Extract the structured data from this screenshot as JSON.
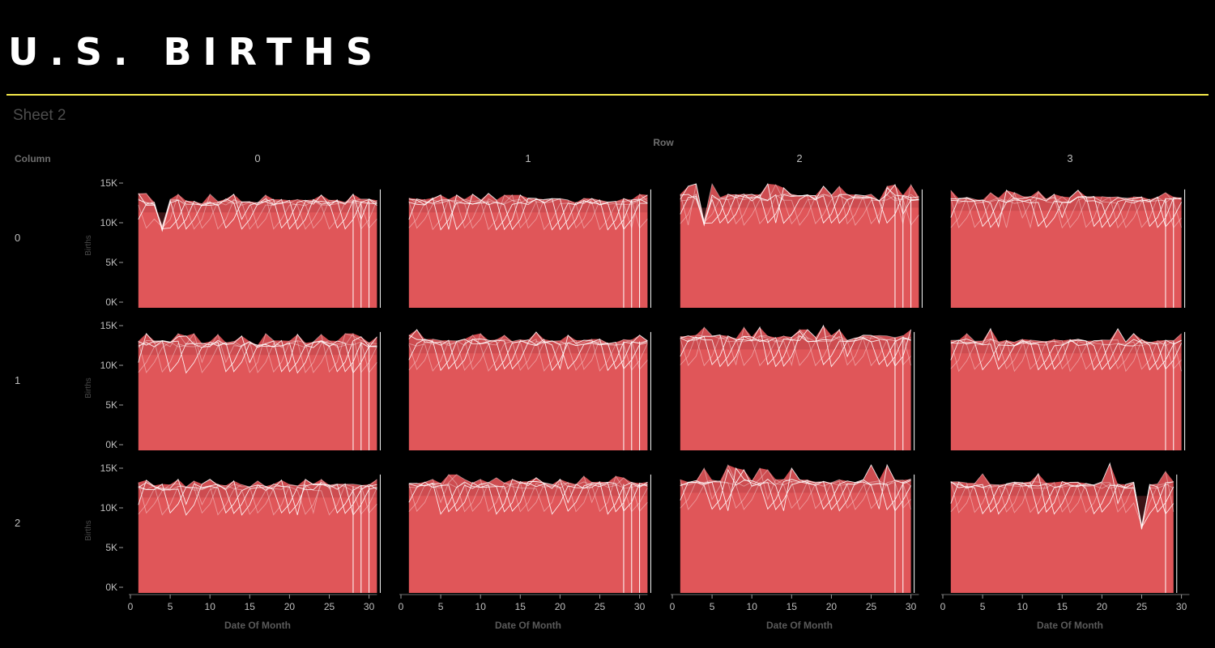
{
  "page": {
    "title": "U.S. BIRTHS",
    "sheet_title": "Sheet 2",
    "accent_color": "#f5e94a",
    "background_color": "#000000"
  },
  "chart_data": {
    "type": "area",
    "row_header": "Row",
    "column_header": "Column",
    "panel_columns": [
      "0",
      "1",
      "2",
      "3"
    ],
    "panel_rows": [
      "0",
      "1",
      "2"
    ],
    "xlabel": "Date Of Month",
    "ylabel": "Births",
    "x_ticks": [
      "0",
      "5",
      "10",
      "15",
      "20",
      "25",
      "30"
    ],
    "y_ticks": [
      "0K",
      "5K",
      "10K",
      "15K"
    ],
    "xlim": [
      0,
      31
    ],
    "ylim": [
      0,
      15500
    ],
    "fill_color": "#e05659",
    "line_color": "#ffffff",
    "panels": [
      {
        "row": 0,
        "col": 0,
        "days": 31,
        "baseline": 12400,
        "typical_low": 11300,
        "highs": [
          13500,
          13600,
          13700,
          13900
        ],
        "dips": [
          {
            "day": 4,
            "value": 9000
          }
        ]
      },
      {
        "row": 0,
        "col": 1,
        "days": 31,
        "baseline": 12500,
        "typical_low": 11300,
        "highs": [
          13500,
          13600,
          13700,
          14500
        ],
        "dips": []
      },
      {
        "row": 0,
        "col": 2,
        "days": 31,
        "baseline": 13000,
        "typical_low": 11900,
        "highs": [
          14400,
          14600,
          14800,
          14900
        ],
        "dips": [
          {
            "day": 4,
            "value": 9700
          }
        ]
      },
      {
        "row": 0,
        "col": 3,
        "days": 30,
        "baseline": 12700,
        "typical_low": 11500,
        "highs": [
          13600,
          13800,
          14000,
          14100
        ],
        "dips": []
      },
      {
        "row": 1,
        "col": 0,
        "days": 31,
        "baseline": 12500,
        "typical_low": 11300,
        "highs": [
          13600,
          13700,
          13900,
          14000
        ],
        "dips": []
      },
      {
        "row": 1,
        "col": 1,
        "days": 31,
        "baseline": 12700,
        "typical_low": 11500,
        "highs": [
          13800,
          14000,
          14200,
          14500
        ],
        "dips": []
      },
      {
        "row": 1,
        "col": 2,
        "days": 30,
        "baseline": 13200,
        "typical_low": 12000,
        "highs": [
          14300,
          14500,
          14800,
          15000
        ],
        "dips": []
      },
      {
        "row": 1,
        "col": 3,
        "days": 30,
        "baseline": 12700,
        "typical_low": 11500,
        "highs": [
          14000,
          14300,
          14600,
          15500
        ],
        "dips": []
      },
      {
        "row": 2,
        "col": 0,
        "days": 31,
        "baseline": 12400,
        "typical_low": 11300,
        "highs": [
          13200,
          13400,
          13500,
          13600
        ],
        "dips": []
      },
      {
        "row": 2,
        "col": 1,
        "days": 31,
        "baseline": 12700,
        "typical_low": 11500,
        "highs": [
          13600,
          13800,
          14000,
          14200
        ],
        "dips": []
      },
      {
        "row": 2,
        "col": 2,
        "days": 30,
        "baseline": 13000,
        "typical_low": 11900,
        "highs": [
          14500,
          14800,
          15000,
          15400
        ],
        "dips": []
      },
      {
        "row": 2,
        "col": 3,
        "days": 29,
        "baseline": 12700,
        "typical_low": 11500,
        "highs": [
          14000,
          14300,
          14600,
          15600
        ],
        "dips": [
          {
            "day": 25,
            "value": 7300
          }
        ]
      }
    ]
  }
}
